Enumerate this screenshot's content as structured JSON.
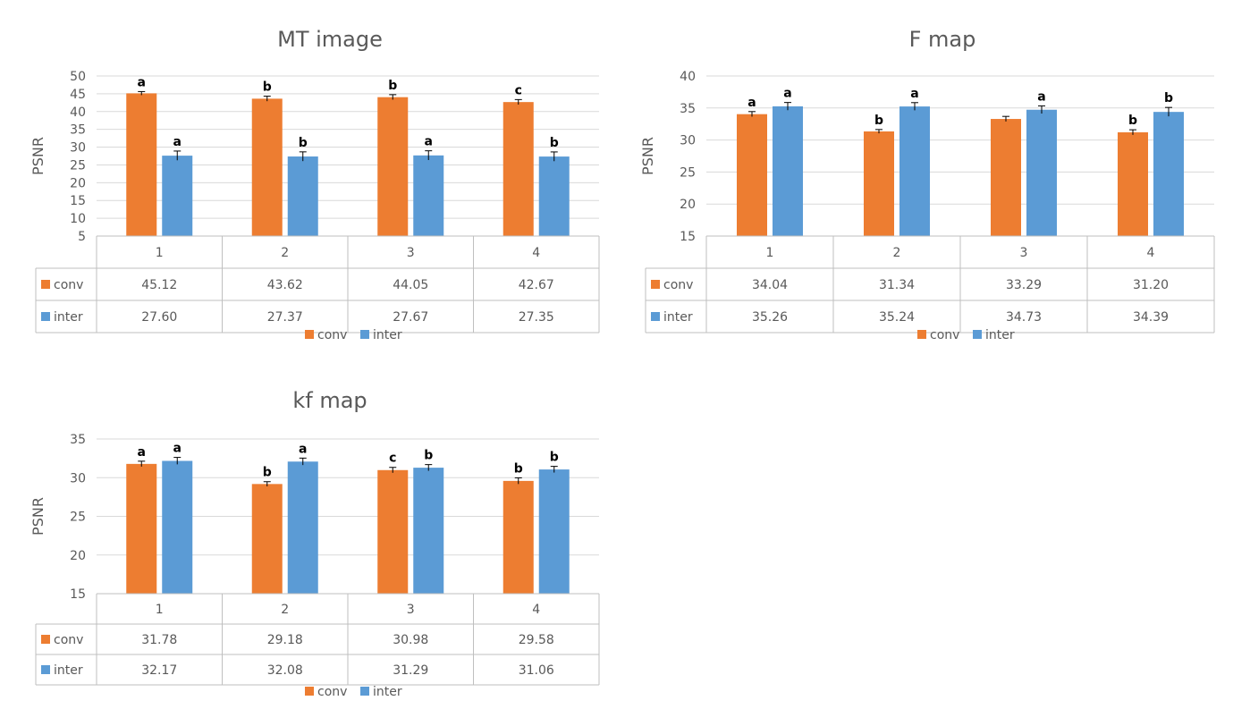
{
  "chart_data": [
    {
      "type": "bar",
      "title": "MT image",
      "ylabel": "PSNR",
      "xlabel": "",
      "ylim": [
        5,
        50
      ],
      "ytick_step": 5,
      "categories": [
        "1",
        "2",
        "3",
        "4"
      ],
      "series": [
        {
          "name": "conv",
          "color": "#ed7d31",
          "values": [
            45.12,
            43.62,
            44.05,
            42.67
          ],
          "labels": [
            "45.12",
            "43.62",
            "44.05",
            "42.67"
          ],
          "errors": [
            0.5,
            0.7,
            0.7,
            0.7
          ],
          "annotations": [
            "a",
            "b",
            "b",
            "c"
          ]
        },
        {
          "name": "inter",
          "color": "#5b9bd5",
          "values": [
            27.6,
            27.37,
            27.67,
            27.35
          ],
          "labels": [
            "27.60",
            "27.37",
            "27.67",
            "27.35"
          ],
          "errors": [
            1.3,
            1.3,
            1.3,
            1.3
          ],
          "annotations": [
            "a",
            "b",
            "a",
            "b"
          ]
        }
      ],
      "grid": true,
      "legend": "bottom",
      "data_table": true
    },
    {
      "type": "bar",
      "title": "F map",
      "ylabel": "PSNR",
      "xlabel": "",
      "ylim": [
        15,
        40
      ],
      "ytick_step": 5,
      "categories": [
        "1",
        "2",
        "3",
        "4"
      ],
      "series": [
        {
          "name": "conv",
          "color": "#ed7d31",
          "values": [
            34.04,
            31.34,
            33.29,
            31.2
          ],
          "labels": [
            "34.04",
            "31.34",
            "33.29",
            "31.20"
          ],
          "errors": [
            0.4,
            0.3,
            0.4,
            0.4
          ],
          "annotations": [
            "a",
            "b",
            "",
            "b"
          ]
        },
        {
          "name": "inter",
          "color": "#5b9bd5",
          "values": [
            35.26,
            35.24,
            34.73,
            34.39
          ],
          "labels": [
            "35.26",
            "35.24",
            "34.73",
            "34.39"
          ],
          "errors": [
            0.6,
            0.6,
            0.6,
            0.7
          ],
          "annotations": [
            "a",
            "a",
            "a",
            "b"
          ]
        }
      ],
      "grid": true,
      "legend": "bottom",
      "data_table": true
    },
    {
      "type": "bar",
      "title": "kf map",
      "ylabel": "PSNR",
      "xlabel": "",
      "ylim": [
        15,
        35
      ],
      "ytick_step": 5,
      "categories": [
        "1",
        "2",
        "3",
        "4"
      ],
      "series": [
        {
          "name": "conv",
          "color": "#ed7d31",
          "values": [
            31.78,
            29.18,
            30.98,
            29.58
          ],
          "labels": [
            "31.78",
            "29.18",
            "30.98",
            "29.58"
          ],
          "errors": [
            0.35,
            0.3,
            0.35,
            0.4
          ],
          "annotations": [
            "a",
            "b",
            "c",
            "b"
          ]
        },
        {
          "name": "inter",
          "color": "#5b9bd5",
          "values": [
            32.17,
            32.08,
            31.29,
            31.06
          ],
          "labels": [
            "32.17",
            "32.08",
            "31.29",
            "31.06"
          ],
          "errors": [
            0.45,
            0.45,
            0.4,
            0.4
          ],
          "annotations": [
            "a",
            "a",
            "b",
            "b"
          ]
        }
      ],
      "grid": true,
      "legend": "bottom",
      "data_table": true
    }
  ]
}
